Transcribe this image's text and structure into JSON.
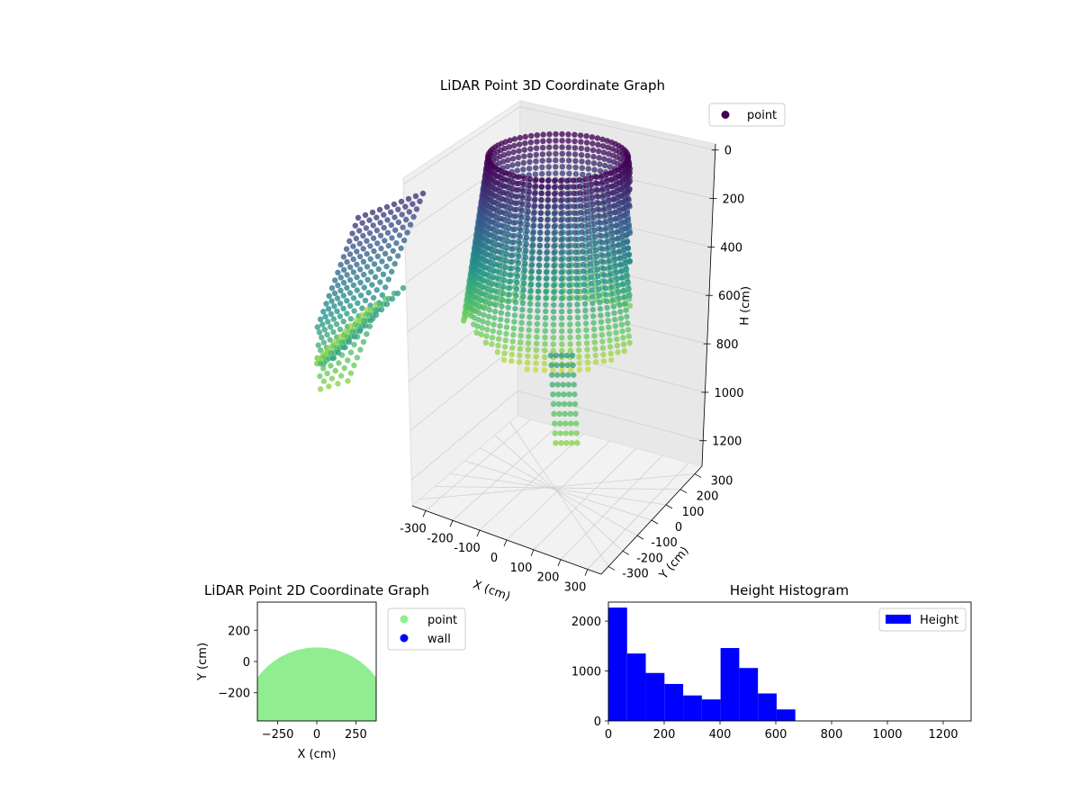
{
  "chart_data": [
    {
      "type": "scatter3d",
      "title": "LiDAR Point 3D Coordinate Graph",
      "xlabel": "X (cm)",
      "ylabel": "Y (cm)",
      "zlabel": "H (cm)",
      "xticks": [
        -300,
        -200,
        -100,
        0,
        100,
        200,
        300
      ],
      "yticks": [
        -300,
        -200,
        -100,
        0,
        100,
        200,
        300
      ],
      "zticks": [
        0,
        200,
        400,
        600,
        800,
        1000,
        1200
      ],
      "z_inverted": true,
      "colormap": "viridis",
      "legend": {
        "placement": "top-right",
        "entries": [
          {
            "name": "point",
            "color": "#440154"
          }
        ]
      },
      "shape": {
        "description_free": true,
        "radius": 380,
        "wall_height_max": 660,
        "floor_height_max": 1200
      }
    },
    {
      "type": "scatter",
      "title": "LiDAR Point 2D Coordinate Graph",
      "xlabel": "X (cm)",
      "ylabel": "Y (cm)",
      "xticks": [
        -250,
        0,
        250
      ],
      "yticks": [
        -200,
        0,
        200
      ],
      "xlim": [
        -380,
        380
      ],
      "ylim": [
        -380,
        380
      ],
      "series": [
        {
          "name": "point",
          "color": "#90ee90"
        },
        {
          "name": "wall",
          "color": "#0000ff"
        }
      ],
      "legend": {
        "placement": "right-outside"
      }
    },
    {
      "type": "bar",
      "title": "Height Histogram",
      "xticks": [
        0,
        200,
        400,
        600,
        800,
        1000,
        1200
      ],
      "yticks": [
        0,
        1000,
        2000
      ],
      "xlim": [
        0,
        1300
      ],
      "ylim": [
        0,
        2380
      ],
      "bin_width": 67,
      "bins": [
        0,
        67,
        134,
        201,
        268,
        335,
        402,
        469,
        536,
        603
      ],
      "values": [
        2270,
        1350,
        960,
        740,
        510,
        430,
        1460,
        1060,
        550,
        230
      ],
      "color": "#0000ff",
      "series": [
        {
          "name": "Height",
          "color": "#0000ff"
        }
      ],
      "legend": {
        "placement": "top-right"
      }
    }
  ]
}
